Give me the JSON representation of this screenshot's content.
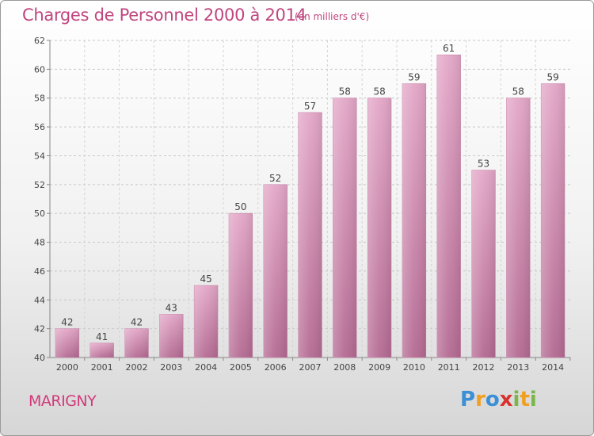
{
  "header": {
    "title": "Charges de Personnel 2000 à 2014",
    "subtitle": "(en milliers d'€)"
  },
  "footer": {
    "place": "MARIGNY",
    "logo_text": "Proxiti",
    "logo_letters": [
      {
        "ch": "P",
        "color": "#3b8fd6"
      },
      {
        "ch": "r",
        "color": "#f0a020"
      },
      {
        "ch": "o",
        "color": "#3b8fd6"
      },
      {
        "ch": "x",
        "color": "#d8322e"
      },
      {
        "ch": "i",
        "color": "#7ab648"
      },
      {
        "ch": "t",
        "color": "#f0a020"
      },
      {
        "ch": "i",
        "color": "#7ab648"
      }
    ]
  },
  "chart_data": {
    "type": "bar",
    "categories": [
      "2000",
      "2001",
      "2002",
      "2003",
      "2004",
      "2005",
      "2006",
      "2007",
      "2008",
      "2009",
      "2010",
      "2011",
      "2012",
      "2013",
      "2014"
    ],
    "values": [
      42,
      41,
      42,
      43,
      45,
      50,
      52,
      57,
      58,
      58,
      59,
      61,
      53,
      58,
      59
    ],
    "data_labels": [
      "42",
      "41",
      "42",
      "43",
      "45",
      "50",
      "52",
      "57",
      "58",
      "58",
      "59",
      "61",
      "53",
      "58",
      "59"
    ],
    "title": "Charges de Personnel 2000 à 2014",
    "ylim": [
      40,
      62
    ],
    "yticks": [
      40,
      42,
      44,
      46,
      48,
      50,
      52,
      54,
      56,
      58,
      60,
      62
    ],
    "grid": true,
    "bar_color": "#d98fb6",
    "bar_color_dark": "#b8678f"
  }
}
